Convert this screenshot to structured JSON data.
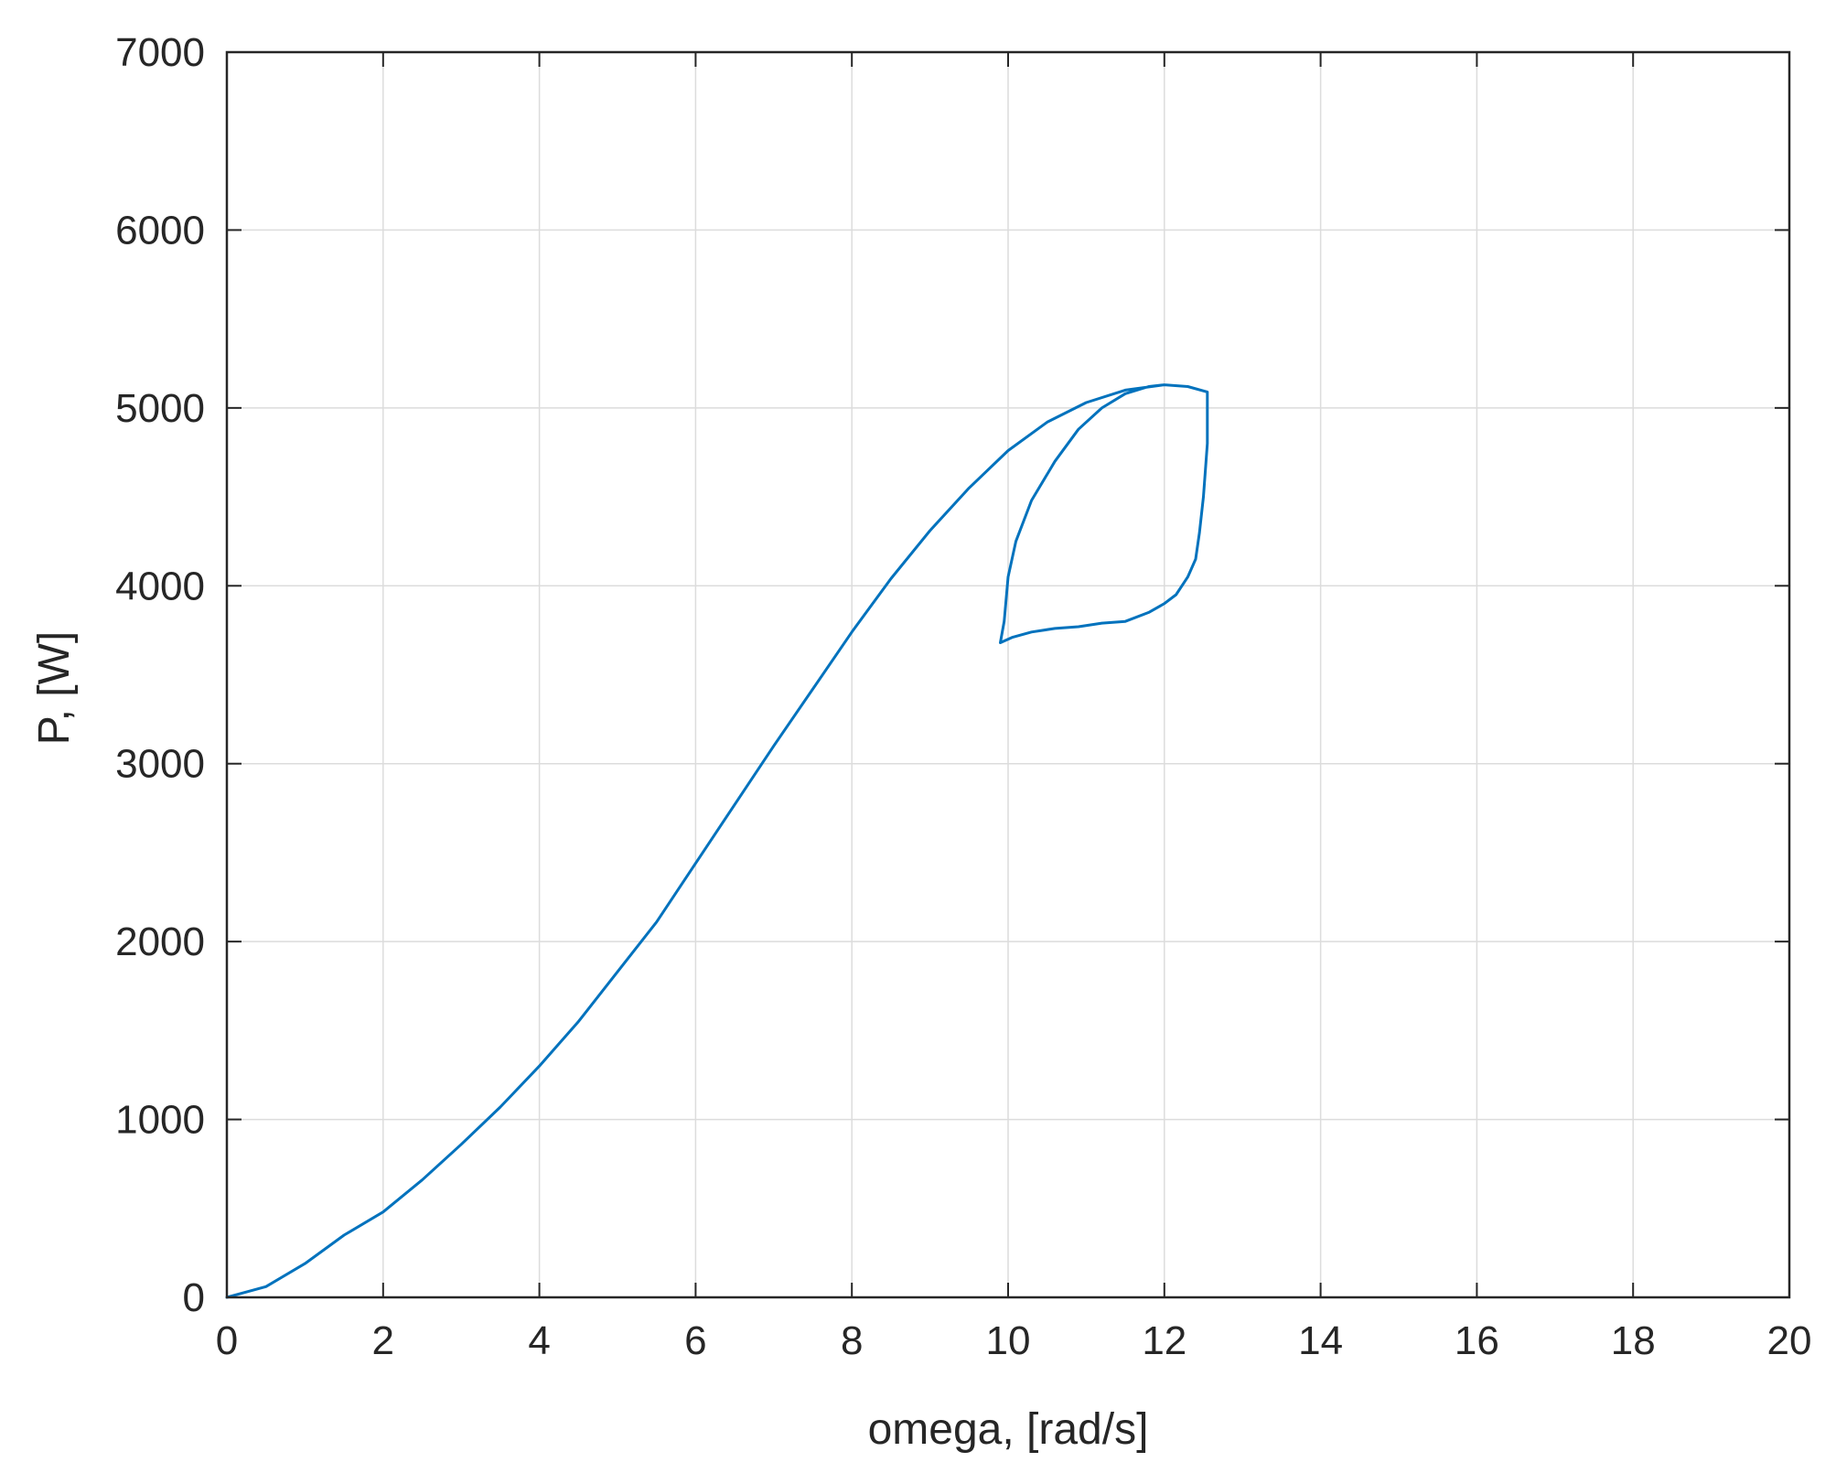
{
  "chart_data": {
    "type": "line",
    "title": "",
    "xlabel": "omega, [rad/s]",
    "ylabel": "P, [W]",
    "xlim": [
      0,
      20
    ],
    "ylim": [
      0,
      7000
    ],
    "xticks": [
      "0",
      "2",
      "4",
      "6",
      "8",
      "10",
      "12",
      "14",
      "16",
      "18",
      "20"
    ],
    "yticks": [
      "0",
      "1000",
      "2000",
      "3000",
      "4000",
      "5000",
      "6000",
      "7000"
    ],
    "grid": true,
    "box": true,
    "colors": {
      "series": "#0072BD",
      "grid": "#dcdcdc",
      "axes": "#262626"
    },
    "series": [
      {
        "x": [
          0,
          0.5,
          1,
          1.5,
          2,
          2.5,
          3,
          3.5,
          4,
          4.5,
          5,
          5.5,
          6,
          6.5,
          7,
          7.5,
          8,
          8.5,
          9,
          9.5,
          10,
          10.5,
          11,
          11.5,
          12,
          12.3,
          12.55,
          12.55,
          12.5,
          12.45,
          12.4,
          12.3,
          12.15,
          12,
          11.8,
          11.5,
          11.2,
          10.9,
          10.6,
          10.3,
          10.05,
          9.9,
          9.95,
          10,
          10.1,
          10.3,
          10.6,
          10.9,
          11.2,
          11.5,
          11.8,
          12.0
        ],
        "y": [
          0,
          60,
          190,
          350,
          480,
          660,
          860,
          1070,
          1300,
          1550,
          1830,
          2110,
          2440,
          2770,
          3100,
          3420,
          3740,
          4040,
          4310,
          4550,
          4760,
          4920,
          5030,
          5100,
          5130,
          5120,
          5090,
          4800,
          4500,
          4300,
          4150,
          4050,
          3950,
          3900,
          3850,
          3800,
          3790,
          3770,
          3760,
          3740,
          3710,
          3680,
          3800,
          4050,
          4250,
          4480,
          4700,
          4880,
          5000,
          5080,
          5120,
          5130
        ]
      }
    ]
  }
}
